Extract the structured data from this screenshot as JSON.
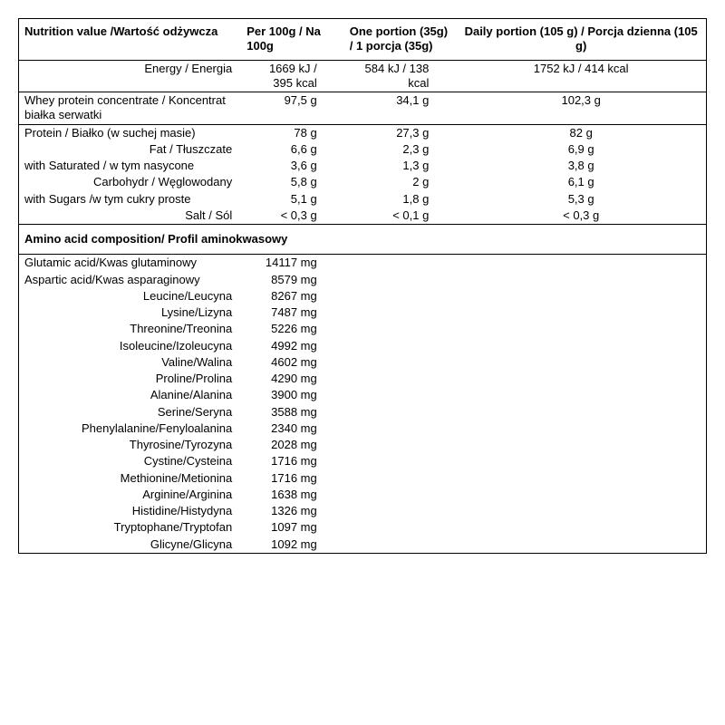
{
  "headers": {
    "label": "Nutrition value /Wartość odżywcza",
    "col_a": "Per 100g / Na 100g",
    "col_b": "One portion (35g) / 1 porcja (35g)",
    "col_c": "Daily portion (105 g) / Porcja dzienna (105 g)"
  },
  "nutrition": [
    {
      "label": "Energy / Energia",
      "a": "1669 kJ / 395 kcal",
      "b": "584 kJ / 138 kcal",
      "c": "1752 kJ / 414 kcal",
      "bt": true,
      "align": "right"
    },
    {
      "label": "Whey protein concentrate / Koncentrat białka serwatki",
      "a": "97,5 g",
      "b": "34,1 g",
      "c": "102,3 g",
      "bt": true,
      "align": "left"
    },
    {
      "label": "Protein / Białko (w suchej masie)",
      "a": "78 g",
      "b": "27,3 g",
      "c": "82 g",
      "bt": true,
      "align": "left"
    },
    {
      "label": "Fat / Tłuszczate",
      "a": "6,6 g",
      "b": "2,3 g",
      "c": "6,9 g",
      "bt": false,
      "align": "right"
    },
    {
      "label": "with Saturated / w tym nasycone",
      "a": "3,6 g",
      "b": "1,3 g",
      "c": "3,8 g",
      "bt": false,
      "align": "left"
    },
    {
      "label": "Carbohydr / Węglowodany",
      "a": "5,8 g",
      "b": "2 g",
      "c": "6,1 g",
      "bt": false,
      "align": "right"
    },
    {
      "label": "with Sugars /w tym cukry proste",
      "a": "5,1 g",
      "b": "1,8 g",
      "c": "5,3 g",
      "bt": false,
      "align": "left"
    },
    {
      "label": "Salt / Sól",
      "a": "< 0,3 g",
      "b": "< 0,1 g",
      "c": "< 0,3 g",
      "bt": false,
      "align": "right"
    }
  ],
  "amino_header": "Amino acid composition/ Profil aminokwasowy",
  "amino": [
    {
      "label": "Glutamic acid/Kwas glutaminowy",
      "val": "14117 mg",
      "align": "left"
    },
    {
      "label": "Aspartic acid/Kwas asparaginowy",
      "val": "8579 mg",
      "align": "left"
    },
    {
      "label": "Leucine/Leucyna",
      "val": "8267 mg",
      "align": "right"
    },
    {
      "label": "Lysine/Lizyna",
      "val": "7487 mg",
      "align": "right"
    },
    {
      "label": "Threonine/Treonina",
      "val": "5226 mg",
      "align": "right"
    },
    {
      "label": "Isoleucine/Izoleucyna",
      "val": "4992 mg",
      "align": "right"
    },
    {
      "label": "Valine/Walina",
      "val": "4602 mg",
      "align": "right"
    },
    {
      "label": "Proline/Prolina",
      "val": "4290 mg",
      "align": "right"
    },
    {
      "label": "Alanine/Alanina",
      "val": "3900 mg",
      "align": "right"
    },
    {
      "label": "Serine/Seryna",
      "val": "3588 mg",
      "align": "right"
    },
    {
      "label": "Phenylalanine/Fenyloalanina",
      "val": "2340 mg",
      "align": "right"
    },
    {
      "label": "Thyrosine/Tyrozyna",
      "val": "2028 mg",
      "align": "right"
    },
    {
      "label": "Cystine/Cysteina",
      "val": "1716 mg",
      "align": "right"
    },
    {
      "label": "Methionine/Metionina",
      "val": "1716 mg",
      "align": "right"
    },
    {
      "label": "Arginine/Arginina",
      "val": "1638 mg",
      "align": "right"
    },
    {
      "label": "Histidine/Histydyna",
      "val": "1326 mg",
      "align": "right"
    },
    {
      "label": "Tryptophane/Tryptofan",
      "val": "1097 mg",
      "align": "right"
    },
    {
      "label": "Glicyne/Glicyna",
      "val": "1092 mg",
      "align": "right"
    }
  ]
}
